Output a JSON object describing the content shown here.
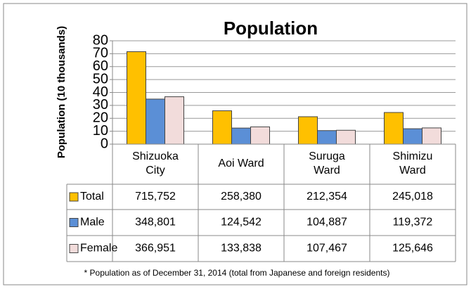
{
  "chart_data": {
    "type": "bar",
    "title": "Population",
    "y_label": "Population (10 thousands)",
    "categories": [
      "Shizuoka City",
      "Aoi Ward",
      "Suruga Ward",
      "Shimizu Ward"
    ],
    "series": [
      {
        "name": "Total",
        "color": "#ffc000",
        "values": [
          71.5752,
          25.838,
          21.2354,
          24.5018
        ],
        "value_labels": [
          "715,752",
          "258,380",
          "212,354",
          "245,018"
        ]
      },
      {
        "name": "Male",
        "color": "#5b8fd6",
        "values": [
          34.8801,
          12.4542,
          10.4887,
          11.9372
        ],
        "value_labels": [
          "348,801",
          "124,542",
          "104,887",
          "119,372"
        ]
      },
      {
        "name": "Female",
        "color": "#f2dcdb",
        "values": [
          36.6951,
          13.3838,
          10.7467,
          12.5646
        ],
        "value_labels": [
          "366,951",
          "133,838",
          "107,467",
          "125,646"
        ]
      }
    ],
    "ylim": [
      0,
      80
    ],
    "yticks": [
      0,
      10,
      20,
      30,
      40,
      50,
      60,
      70,
      80
    ],
    "grid": true,
    "footnote": "* Population as of December 31, 2014 (total from Japanese and foreign residents)"
  }
}
